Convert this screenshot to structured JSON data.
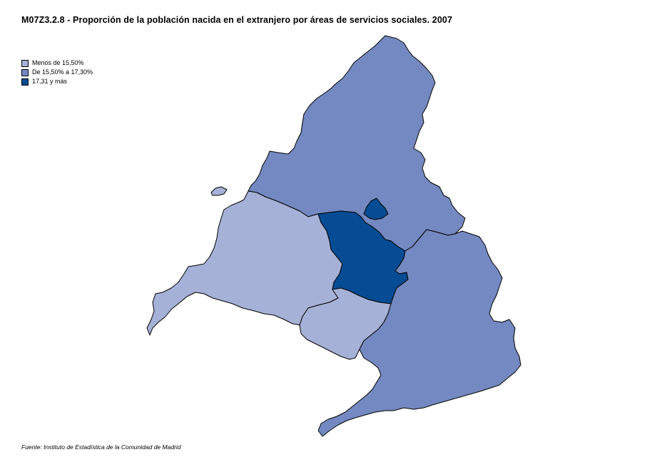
{
  "title": "M07Z3.2.8 - Proporción de la población nacida en el extranjero por áreas de servicios sociales. 2007",
  "legend": {
    "items": [
      {
        "label": "Menos de 15,50%",
        "color": "#a6b1d7"
      },
      {
        "label": "De 15,50% a 17,30%",
        "color": "#7489c1"
      },
      {
        "label": "17,31 y más",
        "color": "#064c94"
      }
    ]
  },
  "map": {
    "regions": [
      {
        "id": "north",
        "class": 1
      },
      {
        "id": "west",
        "class": 0
      },
      {
        "id": "central",
        "class": 2
      },
      {
        "id": "central-north-lobe",
        "class": 2
      },
      {
        "id": "southwest",
        "class": 0
      },
      {
        "id": "east-south",
        "class": 1
      },
      {
        "id": "islet",
        "class": 0
      }
    ]
  },
  "source": "Fuente: Instituto de Estadística de la Comunidad de Madrid"
}
